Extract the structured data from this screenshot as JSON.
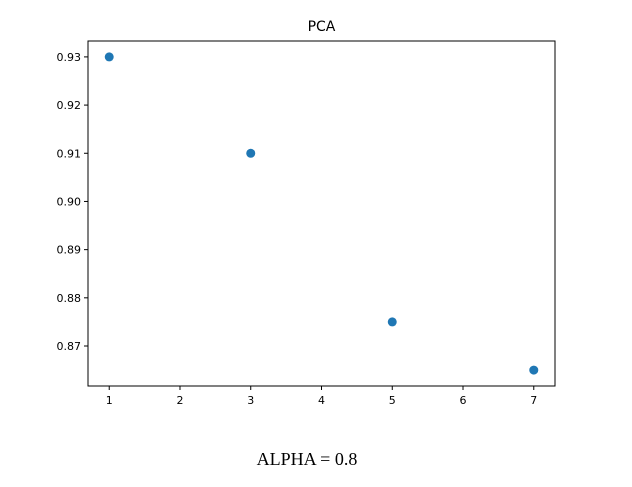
{
  "chart_data": {
    "type": "scatter",
    "title": "PCA",
    "xlabel": "",
    "ylabel": "",
    "x": [
      1,
      3,
      5,
      7
    ],
    "y": [
      0.93,
      0.91,
      0.875,
      0.865
    ],
    "xlim": [
      0.7,
      7.3
    ],
    "ylim": [
      0.8617,
      0.9333
    ],
    "x_ticks": [
      "1",
      "2",
      "3",
      "4",
      "5",
      "6",
      "7"
    ],
    "y_ticks": [
      "0.87",
      "0.88",
      "0.89",
      "0.90",
      "0.91",
      "0.92",
      "0.93"
    ],
    "marker_color": "#1f77b4",
    "grid": false
  },
  "caption": "ALPHA = 0.8"
}
